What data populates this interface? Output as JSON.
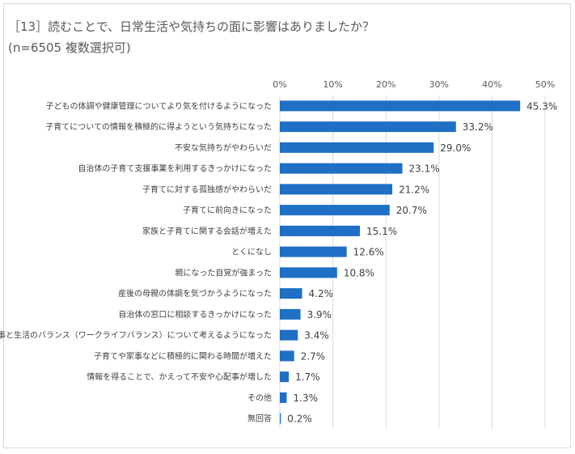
{
  "title_line1": "［13］読むことで、日常生活や気持ちの面に影響はありましたか？",
  "title_line2": "(n=6505 複数選択可)",
  "colors": {
    "bar": "#1f6fc5",
    "grid": "#d9d9d9",
    "text": "#595959"
  },
  "chart_data": {
    "type": "bar",
    "orientation": "horizontal",
    "xlim": [
      0,
      50
    ],
    "x_ticks": [
      "0%",
      "10%",
      "20%",
      "30%",
      "40%",
      "50%"
    ],
    "grid": true,
    "categories": [
      "子どもの体調や健康管理についてより気を付けるようになった",
      "子育てについての情報を積極的に得ようという気持ちになった",
      "不安な気持ちがやわらいだ",
      "自治体の子育て支援事業を利用するきっかけになった",
      "子育てに対する孤独感がやわらいだ",
      "子育てに前向きになった",
      "家族と子育てに関する会話が増えた",
      "とくになし",
      "親になった自覚が強まった",
      "産後の母親の体調を気づかうようになった",
      "自治体の窓口に相談するきっかけになった",
      "仕事と生活のバランス（ワークライフバランス）について考えるようになった",
      "子育てや家事などに積極的に関わる時間が増えた",
      "情報を得ることで、かえって不安や心配事が増した",
      "その他",
      "無回答"
    ],
    "values": [
      45.3,
      33.2,
      29.0,
      23.1,
      21.2,
      20.7,
      15.1,
      12.6,
      10.8,
      4.2,
      3.9,
      3.4,
      2.7,
      1.7,
      1.3,
      0.2
    ],
    "value_labels": [
      "45.3%",
      "33.2%",
      "29.0%",
      "23.1%",
      "21.2%",
      "20.7%",
      "15.1%",
      "12.6%",
      "10.8%",
      "4.2%",
      "3.9%",
      "3.4%",
      "2.7%",
      "1.7%",
      "1.3%",
      "0.2%"
    ]
  }
}
